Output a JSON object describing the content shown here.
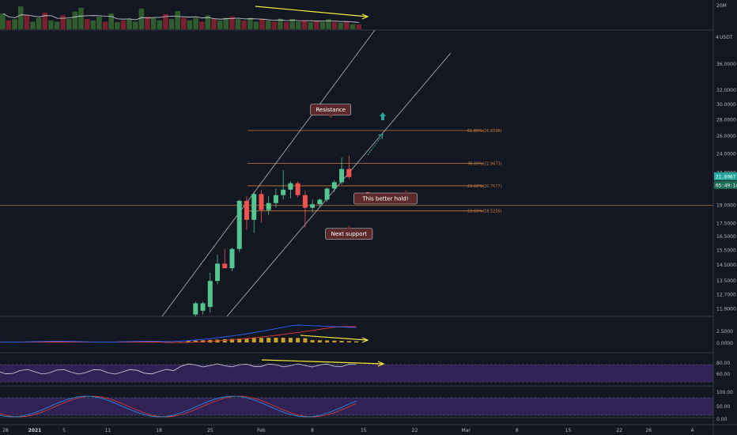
{
  "chart_data": {
    "type": "candlestick",
    "symbol_currency": "USDT",
    "price_axis": {
      "scale": "log",
      "range": [
        11.5,
        42
      ],
      "tick_labels": [
        "36.0000",
        "32.0000",
        "30.0000",
        "28.0000",
        "26.0000",
        "24.0000",
        "22.0000",
        "19.0000",
        "17.5000",
        "16.5000",
        "15.5000",
        "14.5000",
        "13.5000",
        "12.7000",
        "11.9000"
      ],
      "tick_values": [
        36,
        32,
        30,
        28,
        26,
        24,
        22,
        19,
        17.5,
        16.5,
        15.5,
        14.5,
        13.5,
        12.7,
        11.9
      ],
      "top_label": "4"
    },
    "last_price_tag": {
      "price": "21.6067",
      "countdown": "05:49:14",
      "color": "#26a69a"
    },
    "date_axis": {
      "labels": [
        {
          "text": "28",
          "day": -4
        },
        {
          "text": "2021",
          "day": 0,
          "bold": true
        },
        {
          "text": "5",
          "day": 4
        },
        {
          "text": "11",
          "day": 10
        },
        {
          "text": "18",
          "day": 17
        },
        {
          "text": "25",
          "day": 24
        },
        {
          "text": "Feb",
          "day": 31
        },
        {
          "text": "8",
          "day": 38
        },
        {
          "text": "15",
          "day": 45
        },
        {
          "text": "22",
          "day": 52
        },
        {
          "text": "Mar",
          "day": 59
        },
        {
          "text": "8",
          "day": 66
        },
        {
          "text": "15",
          "day": 73
        },
        {
          "text": "22",
          "day": 80
        },
        {
          "text": "26",
          "day": 84
        },
        {
          "text": "A",
          "day": 90
        }
      ]
    },
    "candles": [
      {
        "day": 22,
        "o": 11.6,
        "h": 12.3,
        "l": 11.5,
        "c": 12.2
      },
      {
        "day": 23,
        "o": 11.8,
        "h": 12.3,
        "l": 11.6,
        "c": 12.2
      },
      {
        "day": 24,
        "o": 12.0,
        "h": 14.0,
        "l": 11.7,
        "c": 13.5
      },
      {
        "day": 25,
        "o": 13.5,
        "h": 15.2,
        "l": 13.3,
        "c": 14.6
      },
      {
        "day": 26,
        "o": 14.6,
        "h": 15.6,
        "l": 14.4,
        "c": 14.3
      },
      {
        "day": 27,
        "o": 14.3,
        "h": 15.7,
        "l": 14.1,
        "c": 15.6
      },
      {
        "day": 28,
        "o": 15.6,
        "h": 19.5,
        "l": 15.4,
        "c": 19.4
      },
      {
        "day": 29,
        "o": 19.4,
        "h": 19.8,
        "l": 17.0,
        "c": 17.8
      },
      {
        "day": 30,
        "o": 17.8,
        "h": 20.2,
        "l": 16.8,
        "c": 20.0
      },
      {
        "day": 31,
        "o": 20.0,
        "h": 20.4,
        "l": 17.6,
        "c": 18.6
      },
      {
        "day": 32,
        "o": 18.6,
        "h": 19.8,
        "l": 18.2,
        "c": 19.2
      },
      {
        "day": 33,
        "o": 19.2,
        "h": 20.5,
        "l": 18.8,
        "c": 19.9
      },
      {
        "day": 34,
        "o": 19.9,
        "h": 22.3,
        "l": 19.5,
        "c": 20.4
      },
      {
        "day": 35,
        "o": 20.4,
        "h": 21.2,
        "l": 19.6,
        "c": 21.0
      },
      {
        "day": 36,
        "o": 21.0,
        "h": 21.2,
        "l": 19.7,
        "c": 19.9
      },
      {
        "day": 37,
        "o": 19.9,
        "h": 20.3,
        "l": 17.2,
        "c": 18.8
      },
      {
        "day": 38,
        "o": 18.8,
        "h": 19.5,
        "l": 18.4,
        "c": 19.1
      },
      {
        "day": 39,
        "o": 19.1,
        "h": 19.6,
        "l": 18.8,
        "c": 19.5
      },
      {
        "day": 40,
        "o": 19.5,
        "h": 20.6,
        "l": 19.3,
        "c": 20.5
      },
      {
        "day": 41,
        "o": 20.5,
        "h": 21.3,
        "l": 20.2,
        "c": 21.1
      },
      {
        "day": 42,
        "o": 21.1,
        "h": 23.6,
        "l": 20.9,
        "c": 22.4
      },
      {
        "day": 43,
        "o": 22.4,
        "h": 23.8,
        "l": 21.4,
        "c": 21.6
      }
    ],
    "fib_levels": [
      {
        "label": "61.80%(26.6596)",
        "price": 26.66
      },
      {
        "label": "38.20%(22.9673)",
        "price": 22.97
      },
      {
        "label": "23.60%(20.7577)",
        "price": 20.76
      },
      {
        "label": "23.60%(18.5256)",
        "price": 18.53
      }
    ],
    "horizontal_line": {
      "price": 19.0
    },
    "notes": [
      {
        "text": "Resistance",
        "day": 40.5,
        "price": 29.3
      },
      {
        "text": "This better hold!",
        "day": 48,
        "price": 19.6
      },
      {
        "text": "Next support",
        "day": 43,
        "price": 16.7
      }
    ],
    "volume_panel": {
      "axis_label": "20M",
      "bars": [
        {
          "v": 0.62,
          "up": true
        },
        {
          "v": 0.35,
          "up": false
        },
        {
          "v": 0.4,
          "up": true
        },
        {
          "v": 0.9,
          "up": true
        },
        {
          "v": 0.55,
          "up": false
        },
        {
          "v": 0.3,
          "up": true
        },
        {
          "v": 0.45,
          "up": true
        },
        {
          "v": 0.65,
          "up": false
        },
        {
          "v": 0.35,
          "up": true
        },
        {
          "v": 0.3,
          "up": true
        },
        {
          "v": 0.55,
          "up": false
        },
        {
          "v": 0.4,
          "up": true
        },
        {
          "v": 0.7,
          "up": true
        },
        {
          "v": 0.85,
          "up": true
        },
        {
          "v": 0.4,
          "up": false
        },
        {
          "v": 0.35,
          "up": true
        },
        {
          "v": 0.5,
          "up": true
        },
        {
          "v": 0.3,
          "up": false
        },
        {
          "v": 0.62,
          "up": true
        },
        {
          "v": 0.28,
          "up": true
        },
        {
          "v": 0.35,
          "up": false
        },
        {
          "v": 0.4,
          "up": true
        },
        {
          "v": 0.3,
          "up": true
        },
        {
          "v": 0.82,
          "up": true
        },
        {
          "v": 0.5,
          "up": false
        },
        {
          "v": 0.45,
          "up": true
        },
        {
          "v": 0.35,
          "up": true
        },
        {
          "v": 0.6,
          "up": false
        },
        {
          "v": 0.4,
          "up": true
        },
        {
          "v": 0.72,
          "up": true
        },
        {
          "v": 0.45,
          "up": false
        },
        {
          "v": 0.35,
          "up": true
        },
        {
          "v": 0.45,
          "up": true
        },
        {
          "v": 0.3,
          "up": false
        },
        {
          "v": 0.55,
          "up": true
        },
        {
          "v": 0.4,
          "up": false
        },
        {
          "v": 0.35,
          "up": true
        },
        {
          "v": 0.45,
          "up": true
        },
        {
          "v": 0.5,
          "up": false
        },
        {
          "v": 0.4,
          "up": true
        },
        {
          "v": 0.35,
          "up": false
        },
        {
          "v": 0.45,
          "up": true
        },
        {
          "v": 0.3,
          "up": true
        },
        {
          "v": 0.4,
          "up": false
        },
        {
          "v": 0.35,
          "up": true
        },
        {
          "v": 0.3,
          "up": false
        },
        {
          "v": 0.42,
          "up": true
        },
        {
          "v": 0.28,
          "up": false
        },
        {
          "v": 0.4,
          "up": true
        },
        {
          "v": 0.3,
          "up": true
        },
        {
          "v": 0.35,
          "up": false
        },
        {
          "v": 0.28,
          "up": true
        },
        {
          "v": 0.32,
          "up": false
        },
        {
          "v": 0.3,
          "up": true
        },
        {
          "v": 0.4,
          "up": true
        },
        {
          "v": 0.28,
          "up": false
        },
        {
          "v": 0.25,
          "up": true
        },
        {
          "v": 0.3,
          "up": false
        },
        {
          "v": 0.2,
          "up": true
        },
        {
          "v": 0.18,
          "up": false
        }
      ]
    },
    "macd_panel": {
      "tick_labels": [
        "2.5000",
        "0.0000"
      ]
    },
    "rsi_panel": {
      "tick_labels": [
        "80.00",
        "60.00"
      ]
    },
    "stoch_panel": {
      "tick_labels": [
        "100.00",
        "50.00",
        "0.00"
      ]
    }
  },
  "colors": {
    "up": "#26a69a",
    "candle_up": "#54c58f",
    "down": "#ef5350",
    "vol_up": "#2f5b2f",
    "vol_down": "#7a1f2d",
    "fib": "#c77c3c",
    "channel": "#b2b5be",
    "note_bg": "#5c2a2a",
    "yellow": "#f5eb3b",
    "rsi_band": "#3b2766",
    "rsi_line": "#d1d4dc",
    "macd_blue": "#2962ff",
    "macd_red": "#e53935",
    "macd_hist": "#c8a32a",
    "stoch_blue": "#2196f3",
    "stoch_red": "#e53935"
  }
}
